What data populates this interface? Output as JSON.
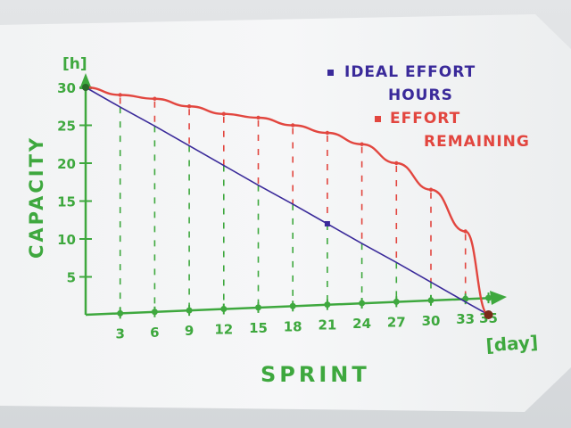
{
  "chart_data": {
    "type": "line",
    "ylabel": "CAPACITY",
    "yunit": "[h]",
    "xlabel": "SPRINT",
    "xunit": "[day]",
    "ylim": [
      0,
      30
    ],
    "xlim": [
      0,
      35
    ],
    "yticks": [
      5,
      10,
      15,
      20,
      25,
      30
    ],
    "xtick_labels": [
      "3",
      "6",
      "9",
      "12",
      "15",
      "18",
      "21",
      "24",
      "27",
      "30",
      "33",
      "35"
    ],
    "x": [
      0,
      3,
      6,
      9,
      12,
      15,
      18,
      21,
      24,
      27,
      30,
      33,
      35
    ],
    "series": [
      {
        "name": "IDEAL EFFORT HOURS",
        "color": "#3a2a9a",
        "values": [
          30,
          27.4,
          24.9,
          22.3,
          19.7,
          17.1,
          14.6,
          12.0,
          9.4,
          6.9,
          4.3,
          1.7,
          0
        ]
      },
      {
        "name": "EFFORT REMAINING",
        "color": "#e2463f",
        "values": [
          30,
          29.0,
          28.5,
          27.5,
          26.5,
          26.0,
          25.0,
          24.0,
          22.5,
          20.0,
          16.5,
          11.0,
          0
        ]
      }
    ],
    "legend": {
      "position": "top-right",
      "lines": [
        [
          "IDEAL EFFORT",
          "HOURS"
        ],
        [
          "EFFORT",
          "REMAINING"
        ]
      ]
    },
    "grid": false,
    "colors": {
      "axis": "#3ea83e",
      "ideal": "#3a2a9a",
      "remaining": "#e2463f"
    }
  }
}
